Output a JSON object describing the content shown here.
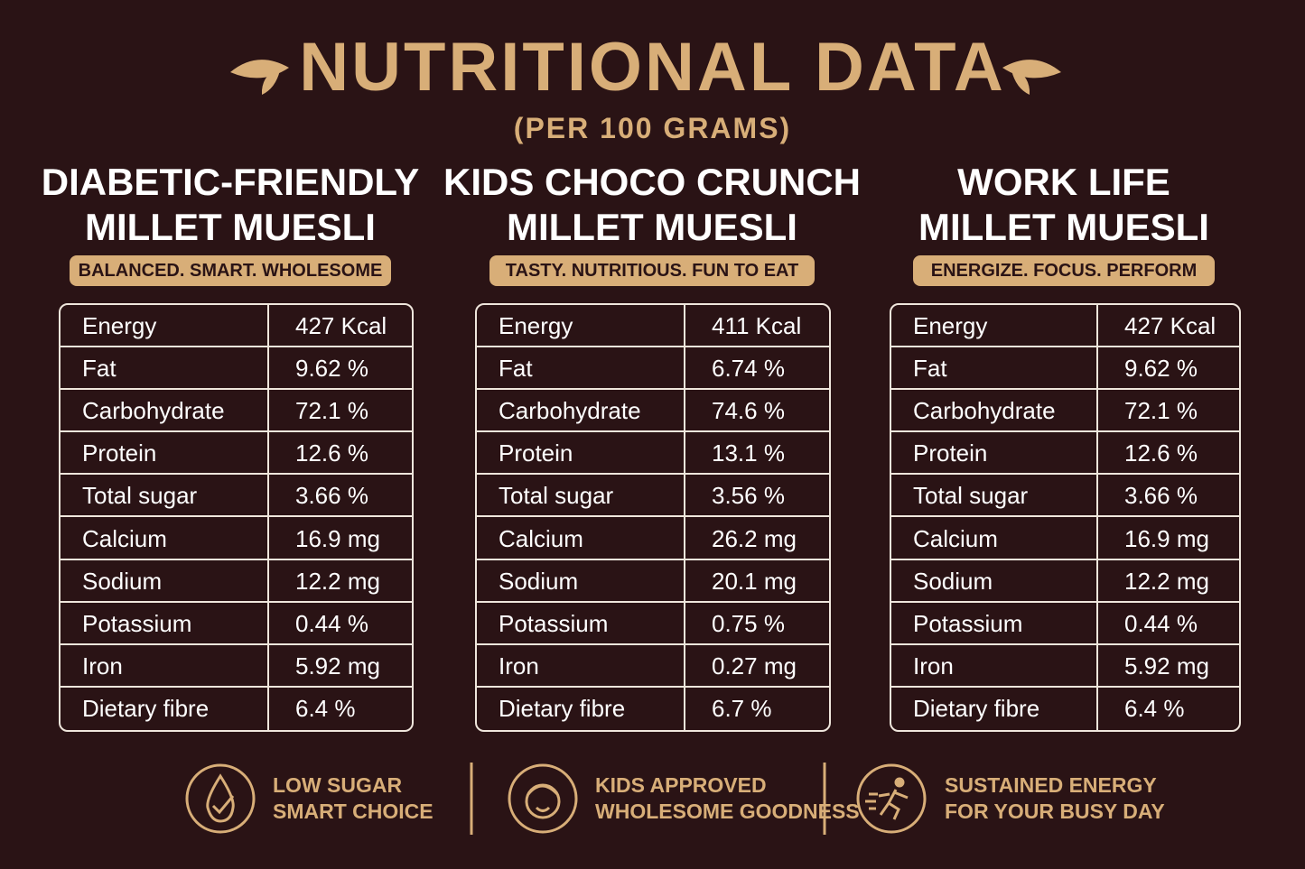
{
  "header": {
    "title": "NUTRITIONAL DATA",
    "subtitle": "(PER 100 GRAMS)"
  },
  "products": [
    {
      "name": [
        "DIABETIC-FRIENDLY",
        "MILLET MUESLI"
      ],
      "tagline": "BALANCED. SMART. WHOLESOME",
      "rows": [
        [
          "Energy",
          "427 Kcal"
        ],
        [
          "Fat",
          "9.62 %"
        ],
        [
          "Carbohydrate",
          "72.1 %"
        ],
        [
          "Protein",
          "12.6 %"
        ],
        [
          "Total sugar",
          "3.66 %"
        ],
        [
          "Calcium",
          "16.9 mg"
        ],
        [
          "Sodium",
          "12.2 mg"
        ],
        [
          "Potassium",
          "0.44 %"
        ],
        [
          "Iron",
          "5.92 mg"
        ],
        [
          "Dietary fibre",
          "6.4 %"
        ]
      ]
    },
    {
      "name": [
        "KIDS CHOCO CRUNCH",
        "MILLET MUESLI"
      ],
      "tagline": "TASTY. NUTRITIOUS. FUN TO EAT",
      "rows": [
        [
          "Energy",
          "411 Kcal"
        ],
        [
          "Fat",
          "6.74 %"
        ],
        [
          "Carbohydrate",
          "74.6 %"
        ],
        [
          "Protein",
          "13.1 %"
        ],
        [
          "Total sugar",
          "3.56 %"
        ],
        [
          "Calcium",
          "26.2 mg"
        ],
        [
          "Sodium",
          "20.1 mg"
        ],
        [
          "Potassium",
          "0.75 %"
        ],
        [
          "Iron",
          "0.27 mg"
        ],
        [
          "Dietary fibre",
          "6.7 %"
        ]
      ]
    },
    {
      "name": [
        "WORK LIFE",
        "MILLET MUESLI"
      ],
      "tagline": "ENERGIZE. FOCUS. PERFORM",
      "rows": [
        [
          "Energy",
          "427 Kcal"
        ],
        [
          "Fat",
          "9.62 %"
        ],
        [
          "Carbohydrate",
          "72.1 %"
        ],
        [
          "Protein",
          "12.6 %"
        ],
        [
          "Total sugar",
          "3.66 %"
        ],
        [
          "Calcium",
          "16.9 mg"
        ],
        [
          "Sodium",
          "12.2 mg"
        ],
        [
          "Potassium",
          "0.44 %"
        ],
        [
          "Iron",
          "5.92 mg"
        ],
        [
          "Dietary fibre",
          "6.4 %"
        ]
      ]
    }
  ],
  "features": [
    {
      "lines": [
        "LOW SUGAR",
        "SMART CHOICE"
      ]
    },
    {
      "lines": [
        "KIDS APPROVED",
        "WHOLESOME GOODNESS"
      ]
    },
    {
      "lines": [
        "SUSTAINED ENERGY",
        "FOR YOUR BUSY DAY"
      ]
    }
  ]
}
